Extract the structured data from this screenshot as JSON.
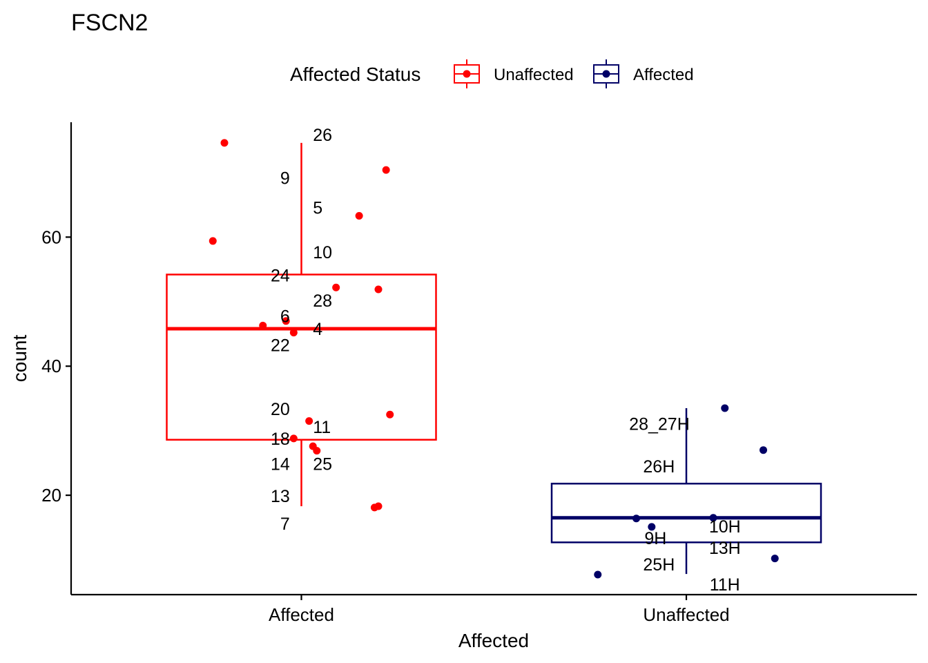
{
  "colors": {
    "Unaffected": "#ff0000",
    "Affected": "#000066",
    "axis": "#000000"
  },
  "chart_data": {
    "type": "boxplot",
    "title": "FSCN2",
    "xlabel": "Affected",
    "ylabel": "count",
    "categories": [
      "Affected",
      "Unaffected"
    ],
    "yticks": [
      20,
      40,
      60
    ],
    "ylim": [
      4.6,
      77.8
    ],
    "legend": {
      "title": "Affected Status",
      "position": "top",
      "entries": [
        {
          "label": "Unaffected",
          "color": "#ff0000"
        },
        {
          "label": "Affected",
          "color": "#000066"
        }
      ]
    },
    "boxes": [
      {
        "category": "Affected",
        "legend_key": "Unaffected",
        "color": "#ff0000",
        "whisker_low": 18.3,
        "q1": 28.6,
        "median": 45.8,
        "q3": 54.2,
        "whisker_high": 74.6
      },
      {
        "category": "Unaffected",
        "legend_key": "Affected",
        "color": "#000066",
        "whisker_low": 7.8,
        "q1": 12.7,
        "median": 16.5,
        "q3": 21.8,
        "whisker_high": 33.5
      }
    ],
    "points": [
      {
        "category": "Affected",
        "jitter": -0.2,
        "y": 74.6
      },
      {
        "category": "Affected",
        "jitter": 0.22,
        "y": 70.4
      },
      {
        "category": "Affected",
        "jitter": 0.15,
        "y": 63.3
      },
      {
        "category": "Affected",
        "jitter": -0.23,
        "y": 59.4
      },
      {
        "category": "Affected",
        "jitter": 0.09,
        "y": 52.2
      },
      {
        "category": "Affected",
        "jitter": 0.2,
        "y": 51.9
      },
      {
        "category": "Affected",
        "jitter": -0.04,
        "y": 47.0
      },
      {
        "category": "Affected",
        "jitter": -0.1,
        "y": 46.3
      },
      {
        "category": "Affected",
        "jitter": -0.02,
        "y": 45.2
      },
      {
        "category": "Affected",
        "jitter": 0.23,
        "y": 32.5
      },
      {
        "category": "Affected",
        "jitter": 0.02,
        "y": 31.5
      },
      {
        "category": "Affected",
        "jitter": -0.02,
        "y": 28.8
      },
      {
        "category": "Affected",
        "jitter": 0.03,
        "y": 27.6
      },
      {
        "category": "Affected",
        "jitter": 0.04,
        "y": 26.9
      },
      {
        "category": "Affected",
        "jitter": 0.2,
        "y": 18.3
      },
      {
        "category": "Affected",
        "jitter": 0.19,
        "y": 18.1
      },
      {
        "category": "Unaffected",
        "jitter": 0.1,
        "y": 33.5
      },
      {
        "category": "Unaffected",
        "jitter": 0.2,
        "y": 27.0
      },
      {
        "category": "Unaffected",
        "jitter": -0.13,
        "y": 16.4
      },
      {
        "category": "Unaffected",
        "jitter": 0.07,
        "y": 16.5
      },
      {
        "category": "Unaffected",
        "jitter": -0.09,
        "y": 15.1
      },
      {
        "category": "Unaffected",
        "jitter": 0.23,
        "y": 10.2
      },
      {
        "category": "Unaffected",
        "jitter": -0.23,
        "y": 7.7
      }
    ],
    "point_labels": [
      {
        "text": "26",
        "category": "Affected",
        "jitter": 0.03,
        "y": 75.9,
        "anchor": "start"
      },
      {
        "text": "9",
        "category": "Affected",
        "jitter": -0.03,
        "y": 69.2,
        "anchor": "end"
      },
      {
        "text": "5",
        "category": "Affected",
        "jitter": 0.03,
        "y": 64.6,
        "anchor": "start"
      },
      {
        "text": "10",
        "category": "Affected",
        "jitter": 0.03,
        "y": 57.7,
        "anchor": "start"
      },
      {
        "text": "24",
        "category": "Affected",
        "jitter": -0.03,
        "y": 54.1,
        "anchor": "end"
      },
      {
        "text": "28",
        "category": "Affected",
        "jitter": 0.03,
        "y": 50.2,
        "anchor": "start"
      },
      {
        "text": "6",
        "category": "Affected",
        "jitter": -0.03,
        "y": 47.8,
        "anchor": "end"
      },
      {
        "text": "4",
        "category": "Affected",
        "jitter": 0.03,
        "y": 45.8,
        "anchor": "start"
      },
      {
        "text": "22",
        "category": "Affected",
        "jitter": -0.03,
        "y": 43.3,
        "anchor": "end"
      },
      {
        "text": "20",
        "category": "Affected",
        "jitter": -0.03,
        "y": 33.4,
        "anchor": "end"
      },
      {
        "text": "11",
        "category": "Affected",
        "jitter": 0.03,
        "y": 30.6,
        "anchor": "start"
      },
      {
        "text": "18",
        "category": "Affected",
        "jitter": -0.03,
        "y": 28.8,
        "anchor": "end"
      },
      {
        "text": "14",
        "category": "Affected",
        "jitter": -0.03,
        "y": 24.9,
        "anchor": "end"
      },
      {
        "text": "25",
        "category": "Affected",
        "jitter": 0.03,
        "y": 24.9,
        "anchor": "start"
      },
      {
        "text": "13",
        "category": "Affected",
        "jitter": -0.03,
        "y": 19.9,
        "anchor": "end"
      },
      {
        "text": "7",
        "category": "Affected",
        "jitter": -0.03,
        "y": 15.6,
        "anchor": "end"
      },
      {
        "text": "28_27H",
        "category": "Unaffected",
        "jitter": -0.07,
        "y": 31.1,
        "anchor": "middle"
      },
      {
        "text": "26H",
        "category": "Unaffected",
        "jitter": -0.03,
        "y": 24.5,
        "anchor": "end"
      },
      {
        "text": "10H",
        "category": "Unaffected",
        "jitter": 0.1,
        "y": 15.2,
        "anchor": "middle"
      },
      {
        "text": "9H",
        "category": "Unaffected",
        "jitter": -0.08,
        "y": 13.4,
        "anchor": "middle"
      },
      {
        "text": "13H",
        "category": "Unaffected",
        "jitter": 0.1,
        "y": 11.9,
        "anchor": "middle"
      },
      {
        "text": "25H",
        "category": "Unaffected",
        "jitter": -0.03,
        "y": 9.3,
        "anchor": "end"
      },
      {
        "text": "11H",
        "category": "Unaffected",
        "jitter": 0.1,
        "y": 6.2,
        "anchor": "middle"
      }
    ]
  }
}
